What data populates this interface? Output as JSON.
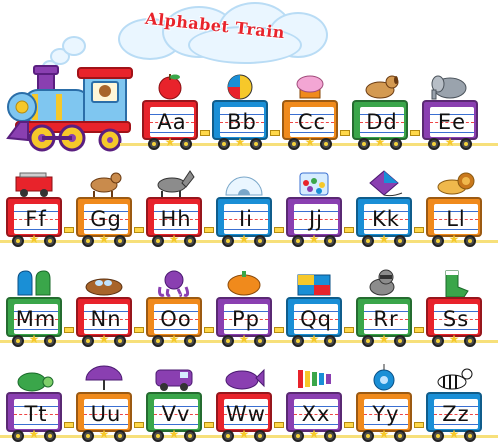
{
  "title": "Alphabet Train",
  "rows": [
    {
      "cars": [
        {
          "letters": "Aa",
          "color": "#e8232b",
          "cargo": "apple-icon"
        },
        {
          "letters": "Bb",
          "color": "#1a8fd6",
          "cargo": "ball-icon"
        },
        {
          "letters": "Cc",
          "color": "#f08a1c",
          "cargo": "cupcake-icon"
        },
        {
          "letters": "Dd",
          "color": "#3aa64a",
          "cargo": "dog-icon"
        },
        {
          "letters": "Ee",
          "color": "#8a3fb1",
          "cargo": "elephant-icon"
        }
      ]
    },
    {
      "cars": [
        {
          "letters": "Ff",
          "color": "#e8232b",
          "cargo": "fire-truck-icon"
        },
        {
          "letters": "Gg",
          "color": "#f08a1c",
          "cargo": "goat-icon"
        },
        {
          "letters": "Hh",
          "color": "#e8232b",
          "cargo": "horse-icon"
        },
        {
          "letters": "Ii",
          "color": "#1a8fd6",
          "cargo": "igloo-icon"
        },
        {
          "letters": "Jj",
          "color": "#8a3fb1",
          "cargo": "jellybeans-icon"
        },
        {
          "letters": "Kk",
          "color": "#1a8fd6",
          "cargo": "kite-icon"
        },
        {
          "letters": "Ll",
          "color": "#f08a1c",
          "cargo": "lion-icon"
        }
      ]
    },
    {
      "cars": [
        {
          "letters": "Mm",
          "color": "#3aa64a",
          "cargo": "mittens-icon"
        },
        {
          "letters": "Nn",
          "color": "#e8232b",
          "cargo": "nest-icon"
        },
        {
          "letters": "Oo",
          "color": "#f08a1c",
          "cargo": "octopus-icon"
        },
        {
          "letters": "Pp",
          "color": "#8a3fb1",
          "cargo": "pumpkin-icon"
        },
        {
          "letters": "Qq",
          "color": "#1a8fd6",
          "cargo": "quilt-icon"
        },
        {
          "letters": "Rr",
          "color": "#3aa64a",
          "cargo": "raccoon-icon"
        },
        {
          "letters": "Ss",
          "color": "#e8232b",
          "cargo": "sock-icon"
        }
      ]
    },
    {
      "cars": [
        {
          "letters": "Tt",
          "color": "#8a3fb1",
          "cargo": "turtle-icon"
        },
        {
          "letters": "Uu",
          "color": "#f08a1c",
          "cargo": "umbrella-icon"
        },
        {
          "letters": "Vv",
          "color": "#3aa64a",
          "cargo": "van-icon"
        },
        {
          "letters": "Ww",
          "color": "#e8232b",
          "cargo": "whale-icon"
        },
        {
          "letters": "Xx",
          "color": "#8a3fb1",
          "cargo": "xylophone-icon"
        },
        {
          "letters": "Yy",
          "color": "#f08a1c",
          "cargo": "yo-yo-icon"
        },
        {
          "letters": "Zz",
          "color": "#1a8fd6",
          "cargo": "zebra-icon"
        }
      ]
    }
  ]
}
